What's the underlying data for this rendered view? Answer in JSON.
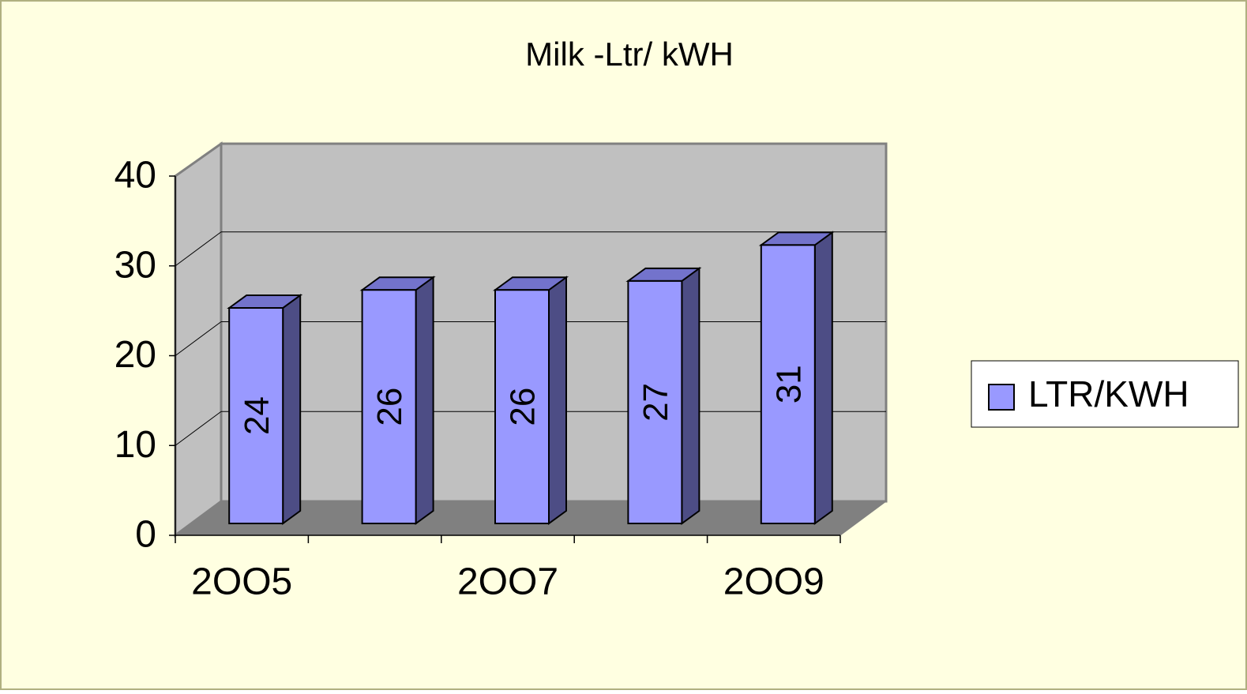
{
  "chart_data": {
    "type": "bar3d",
    "title": "Milk -Ltr/ kWH",
    "categories": [
      "2OO5",
      null,
      "2OO7",
      null,
      "2OO9"
    ],
    "series": [
      {
        "name": "LTR/KWH",
        "color": "#9999ff",
        "values": [
          24,
          26,
          26,
          27,
          31
        ]
      }
    ],
    "ylim": [
      0,
      40
    ],
    "yticks": [
      0,
      10,
      20,
      30,
      40
    ],
    "grid": true,
    "legend": "right"
  }
}
